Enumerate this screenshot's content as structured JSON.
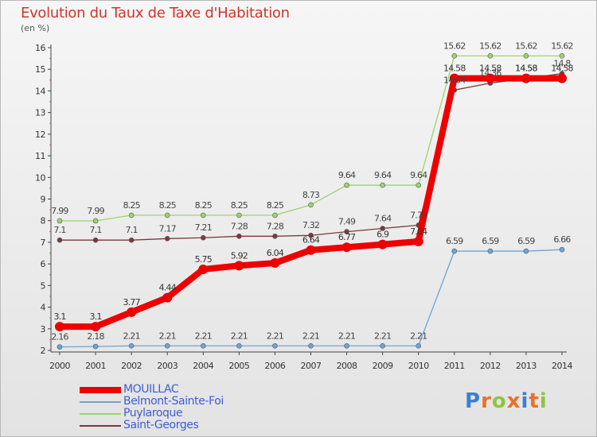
{
  "title": "Evolution du Taux de Taxe d'Habitation",
  "unit": "(en %)",
  "logo": {
    "letters": [
      "P",
      "r",
      "o",
      "x",
      "i",
      "t",
      "i"
    ],
    "colors": [
      "#3a7fd0",
      "#e8722a",
      "#8cc63f",
      "#e8722a",
      "#3a7fd0",
      "#e8722a",
      "#8cc63f"
    ]
  },
  "chart_data": {
    "type": "line",
    "title": "Evolution du Taux de Taxe d'Habitation",
    "ylabel": "(en %)",
    "xlabel": "",
    "x": [
      2000,
      2001,
      2002,
      2003,
      2004,
      2005,
      2006,
      2007,
      2008,
      2009,
      2010,
      2011,
      2012,
      2013,
      2014
    ],
    "ylim": [
      2,
      16
    ],
    "yticks": [
      2,
      3,
      4,
      5,
      6,
      7,
      8,
      9,
      10,
      11,
      12,
      13,
      14,
      15,
      16
    ],
    "grid": false,
    "legend_position": "bottom-left",
    "series": [
      {
        "name": "MOUILLAC",
        "color": "#ee0000",
        "labelColor": "#333333",
        "emphasis": true,
        "values": [
          3.1,
          3.1,
          3.77,
          4.44,
          5.75,
          5.92,
          6.04,
          6.64,
          6.77,
          6.9,
          7.04,
          14.58,
          14.58,
          14.58,
          14.58
        ],
        "labels": [
          "3.1",
          "3.1",
          "3.77",
          "4.44",
          "5.75",
          "5.92",
          "6.04",
          "6.64",
          "6.77",
          "6.9",
          "7.04",
          "14.58",
          "14.58",
          "14.58",
          "14.58"
        ]
      },
      {
        "name": "Belmont-Sainte-Foi",
        "color": "#6aa6d8",
        "labelColor": "#444444",
        "values": [
          2.16,
          2.18,
          2.21,
          2.21,
          2.21,
          2.21,
          2.21,
          2.21,
          2.21,
          2.21,
          2.21,
          6.59,
          6.59,
          6.59,
          6.66
        ],
        "labels": [
          "2.16",
          "2.18",
          "2.21",
          "2.21",
          "2.21",
          "2.21",
          "2.21",
          "2.21",
          "2.21",
          "2.21",
          "2.21",
          "6.59",
          "6.59",
          "6.59",
          "6.66"
        ]
      },
      {
        "name": "Puylaroque",
        "color": "#9bd46a",
        "labelColor": "#444444",
        "values": [
          7.99,
          7.99,
          8.25,
          8.25,
          8.25,
          8.25,
          8.25,
          8.73,
          9.64,
          9.64,
          9.64,
          15.62,
          15.62,
          15.62,
          15.62
        ],
        "labels": [
          "7.99",
          "7.99",
          "8.25",
          "8.25",
          "8.25",
          "8.25",
          "8.25",
          "8.73",
          "9.64",
          "9.64",
          "9.64",
          "15.62",
          "15.62",
          "15.62",
          "15.62"
        ]
      },
      {
        "name": "Saint-Georges",
        "color": "#7a3a3a",
        "labelColor": "#444444",
        "values": [
          7.1,
          7.1,
          7.1,
          7.17,
          7.21,
          7.28,
          7.28,
          7.32,
          7.49,
          7.64,
          7.79,
          14.04,
          14.36,
          14.58,
          14.8
        ],
        "labels": [
          "7.1",
          "7.1",
          "7.1",
          "7.17",
          "7.21",
          "7.28",
          "7.28",
          "7.32",
          "7.49",
          "7.64",
          "7.79",
          "14.04",
          "14.36",
          "14.58",
          "14.8"
        ]
      }
    ]
  },
  "legend": [
    {
      "name": "MOUILLAC",
      "color": "#ee0000",
      "textColor": "#3c5fd0"
    },
    {
      "name": "Belmont-Sainte-Foi",
      "color": "#6aa6d8",
      "textColor": "#3c5fd0"
    },
    {
      "name": "Puylaroque",
      "color": "#9bd46a",
      "textColor": "#3c5fd0"
    },
    {
      "name": "Saint-Georges",
      "color": "#7a3a3a",
      "textColor": "#3c5fd0"
    }
  ]
}
